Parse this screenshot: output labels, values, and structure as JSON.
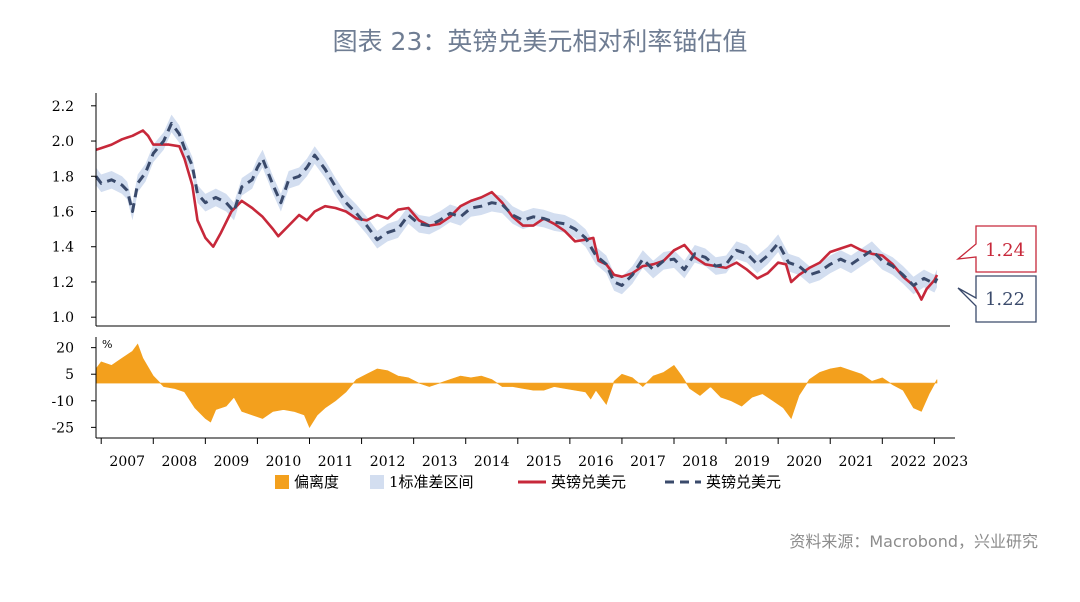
{
  "title": "图表 23：英镑兑美元相对利率锚估值",
  "source": "资料来源：Macrobond，兴业研究",
  "colors": {
    "actual": "#c7283a",
    "model": "#3a4a6b",
    "band": "#d3def0",
    "deviation": "#f3a01d"
  },
  "chart_data": {
    "type": "line",
    "upper_panel": {
      "ylim": [
        0.95,
        2.25
      ],
      "yticks": [
        "1.0",
        "1.2",
        "1.4",
        "1.6",
        "1.8",
        "2.0",
        "2.2"
      ],
      "series": [
        {
          "name": "英镑兑美元",
          "style": "solid",
          "points": [
            [
              2006.9,
              1.95
            ],
            [
              2007.0,
              1.96
            ],
            [
              2007.2,
              1.98
            ],
            [
              2007.4,
              2.01
            ],
            [
              2007.6,
              2.03
            ],
            [
              2007.8,
              2.06
            ],
            [
              2007.9,
              2.03
            ],
            [
              2008.0,
              1.98
            ],
            [
              2008.3,
              1.98
            ],
            [
              2008.5,
              1.97
            ],
            [
              2008.6,
              1.9
            ],
            [
              2008.75,
              1.75
            ],
            [
              2008.85,
              1.55
            ],
            [
              2009.0,
              1.45
            ],
            [
              2009.15,
              1.4
            ],
            [
              2009.3,
              1.48
            ],
            [
              2009.5,
              1.6
            ],
            [
              2009.7,
              1.66
            ],
            [
              2009.9,
              1.62
            ],
            [
              2010.1,
              1.57
            ],
            [
              2010.3,
              1.5
            ],
            [
              2010.4,
              1.46
            ],
            [
              2010.6,
              1.52
            ],
            [
              2010.8,
              1.58
            ],
            [
              2010.95,
              1.55
            ],
            [
              2011.1,
              1.6
            ],
            [
              2011.3,
              1.63
            ],
            [
              2011.5,
              1.62
            ],
            [
              2011.7,
              1.6
            ],
            [
              2011.9,
              1.56
            ],
            [
              2012.1,
              1.55
            ],
            [
              2012.3,
              1.58
            ],
            [
              2012.5,
              1.56
            ],
            [
              2012.7,
              1.61
            ],
            [
              2012.9,
              1.62
            ],
            [
              2013.1,
              1.55
            ],
            [
              2013.3,
              1.52
            ],
            [
              2013.5,
              1.53
            ],
            [
              2013.7,
              1.57
            ],
            [
              2013.9,
              1.63
            ],
            [
              2014.1,
              1.66
            ],
            [
              2014.3,
              1.68
            ],
            [
              2014.5,
              1.71
            ],
            [
              2014.7,
              1.65
            ],
            [
              2014.9,
              1.57
            ],
            [
              2015.1,
              1.52
            ],
            [
              2015.3,
              1.52
            ],
            [
              2015.5,
              1.56
            ],
            [
              2015.7,
              1.53
            ],
            [
              2015.9,
              1.49
            ],
            [
              2016.1,
              1.43
            ],
            [
              2016.3,
              1.44
            ],
            [
              2016.45,
              1.45
            ],
            [
              2016.55,
              1.32
            ],
            [
              2016.7,
              1.3
            ],
            [
              2016.85,
              1.24
            ],
            [
              2017.0,
              1.23
            ],
            [
              2017.2,
              1.25
            ],
            [
              2017.4,
              1.29
            ],
            [
              2017.6,
              1.3
            ],
            [
              2017.8,
              1.32
            ],
            [
              2018.0,
              1.38
            ],
            [
              2018.2,
              1.41
            ],
            [
              2018.4,
              1.34
            ],
            [
              2018.6,
              1.3
            ],
            [
              2018.8,
              1.29
            ],
            [
              2019.0,
              1.28
            ],
            [
              2019.2,
              1.31
            ],
            [
              2019.4,
              1.27
            ],
            [
              2019.6,
              1.22
            ],
            [
              2019.8,
              1.25
            ],
            [
              2020.0,
              1.31
            ],
            [
              2020.15,
              1.3
            ],
            [
              2020.25,
              1.2
            ],
            [
              2020.4,
              1.24
            ],
            [
              2020.6,
              1.28
            ],
            [
              2020.8,
              1.31
            ],
            [
              2021.0,
              1.37
            ],
            [
              2021.2,
              1.39
            ],
            [
              2021.4,
              1.41
            ],
            [
              2021.6,
              1.38
            ],
            [
              2021.8,
              1.36
            ],
            [
              2022.0,
              1.35
            ],
            [
              2022.2,
              1.3
            ],
            [
              2022.4,
              1.23
            ],
            [
              2022.6,
              1.18
            ],
            [
              2022.7,
              1.13
            ],
            [
              2022.75,
              1.1
            ],
            [
              2022.85,
              1.16
            ],
            [
              2023.0,
              1.21
            ],
            [
              2023.05,
              1.24
            ]
          ]
        },
        {
          "name": "英镑兑美元",
          "style": "dashed",
          "points": [
            [
              2006.9,
              1.8
            ],
            [
              2007.0,
              1.76
            ],
            [
              2007.2,
              1.78
            ],
            [
              2007.4,
              1.75
            ],
            [
              2007.5,
              1.72
            ],
            [
              2007.6,
              1.6
            ],
            [
              2007.7,
              1.76
            ],
            [
              2007.85,
              1.82
            ],
            [
              2008.0,
              1.93
            ],
            [
              2008.2,
              2.0
            ],
            [
              2008.35,
              2.1
            ],
            [
              2008.5,
              2.04
            ],
            [
              2008.6,
              1.96
            ],
            [
              2008.75,
              1.86
            ],
            [
              2008.85,
              1.7
            ],
            [
              2009.0,
              1.65
            ],
            [
              2009.2,
              1.68
            ],
            [
              2009.4,
              1.65
            ],
            [
              2009.55,
              1.6
            ],
            [
              2009.7,
              1.74
            ],
            [
              2009.9,
              1.78
            ],
            [
              2010.0,
              1.85
            ],
            [
              2010.1,
              1.9
            ],
            [
              2010.3,
              1.75
            ],
            [
              2010.45,
              1.65
            ],
            [
              2010.6,
              1.78
            ],
            [
              2010.8,
              1.8
            ],
            [
              2010.95,
              1.85
            ],
            [
              2011.1,
              1.92
            ],
            [
              2011.3,
              1.84
            ],
            [
              2011.5,
              1.74
            ],
            [
              2011.7,
              1.65
            ],
            [
              2011.9,
              1.59
            ],
            [
              2012.1,
              1.52
            ],
            [
              2012.3,
              1.44
            ],
            [
              2012.5,
              1.48
            ],
            [
              2012.7,
              1.5
            ],
            [
              2012.9,
              1.58
            ],
            [
              2013.1,
              1.53
            ],
            [
              2013.3,
              1.52
            ],
            [
              2013.5,
              1.55
            ],
            [
              2013.7,
              1.59
            ],
            [
              2013.9,
              1.57
            ],
            [
              2014.1,
              1.62
            ],
            [
              2014.3,
              1.63
            ],
            [
              2014.5,
              1.65
            ],
            [
              2014.7,
              1.64
            ],
            [
              2014.9,
              1.58
            ],
            [
              2015.1,
              1.55
            ],
            [
              2015.3,
              1.57
            ],
            [
              2015.5,
              1.56
            ],
            [
              2015.7,
              1.54
            ],
            [
              2015.9,
              1.53
            ],
            [
              2016.1,
              1.5
            ],
            [
              2016.3,
              1.45
            ],
            [
              2016.5,
              1.35
            ],
            [
              2016.7,
              1.3
            ],
            [
              2016.85,
              1.2
            ],
            [
              2017.0,
              1.18
            ],
            [
              2017.2,
              1.24
            ],
            [
              2017.4,
              1.33
            ],
            [
              2017.6,
              1.27
            ],
            [
              2017.8,
              1.32
            ],
            [
              2018.0,
              1.33
            ],
            [
              2018.2,
              1.27
            ],
            [
              2018.4,
              1.36
            ],
            [
              2018.6,
              1.34
            ],
            [
              2018.8,
              1.29
            ],
            [
              2019.0,
              1.3
            ],
            [
              2019.2,
              1.38
            ],
            [
              2019.4,
              1.36
            ],
            [
              2019.6,
              1.3
            ],
            [
              2019.8,
              1.35
            ],
            [
              2020.0,
              1.42
            ],
            [
              2020.2,
              1.31
            ],
            [
              2020.4,
              1.29
            ],
            [
              2020.6,
              1.24
            ],
            [
              2020.8,
              1.26
            ],
            [
              2021.0,
              1.3
            ],
            [
              2021.2,
              1.33
            ],
            [
              2021.4,
              1.3
            ],
            [
              2021.6,
              1.34
            ],
            [
              2021.8,
              1.38
            ],
            [
              2022.0,
              1.32
            ],
            [
              2022.2,
              1.29
            ],
            [
              2022.4,
              1.24
            ],
            [
              2022.6,
              1.18
            ],
            [
              2022.8,
              1.22
            ],
            [
              2023.0,
              1.19
            ],
            [
              2023.05,
              1.22
            ]
          ]
        }
      ],
      "band_halfwidth": 0.05,
      "annotations": [
        {
          "text": "1.24",
          "value": 1.24,
          "series": "英镑兑美元"
        },
        {
          "text": "1.22",
          "value": 1.22,
          "series": "英镑兑美元"
        }
      ]
    },
    "lower_panel": {
      "ylim": [
        -31,
        26
      ],
      "yticks": [
        "20",
        "5",
        "-10",
        "-25"
      ],
      "ytick_values": [
        20,
        5,
        -10,
        -25
      ],
      "unit": "%",
      "series_name": "偏离度",
      "points": [
        [
          2006.9,
          8
        ],
        [
          2007.0,
          12
        ],
        [
          2007.2,
          10
        ],
        [
          2007.4,
          14
        ],
        [
          2007.6,
          18
        ],
        [
          2007.7,
          22
        ],
        [
          2007.8,
          14
        ],
        [
          2008.0,
          4
        ],
        [
          2008.2,
          -2
        ],
        [
          2008.4,
          -3
        ],
        [
          2008.6,
          -5
        ],
        [
          2008.8,
          -14
        ],
        [
          2009.0,
          -20
        ],
        [
          2009.1,
          -22
        ],
        [
          2009.2,
          -15
        ],
        [
          2009.4,
          -13
        ],
        [
          2009.55,
          -8
        ],
        [
          2009.7,
          -16
        ],
        [
          2009.9,
          -18
        ],
        [
          2010.1,
          -20
        ],
        [
          2010.3,
          -16
        ],
        [
          2010.5,
          -15
        ],
        [
          2010.7,
          -16
        ],
        [
          2010.9,
          -18
        ],
        [
          2011.0,
          -25
        ],
        [
          2011.15,
          -18
        ],
        [
          2011.3,
          -14
        ],
        [
          2011.5,
          -10
        ],
        [
          2011.7,
          -5
        ],
        [
          2011.9,
          2
        ],
        [
          2012.1,
          5
        ],
        [
          2012.3,
          8
        ],
        [
          2012.5,
          7
        ],
        [
          2012.7,
          4
        ],
        [
          2012.9,
          3
        ],
        [
          2013.1,
          0
        ],
        [
          2013.3,
          -2
        ],
        [
          2013.5,
          0
        ],
        [
          2013.7,
          2
        ],
        [
          2013.9,
          4
        ],
        [
          2014.1,
          3
        ],
        [
          2014.3,
          4
        ],
        [
          2014.5,
          2
        ],
        [
          2014.7,
          -2
        ],
        [
          2014.9,
          -2
        ],
        [
          2015.1,
          -3
        ],
        [
          2015.3,
          -4
        ],
        [
          2015.5,
          -4
        ],
        [
          2015.7,
          -2
        ],
        [
          2015.9,
          -3
        ],
        [
          2016.1,
          -4
        ],
        [
          2016.3,
          -5
        ],
        [
          2016.4,
          -9
        ],
        [
          2016.5,
          -4
        ],
        [
          2016.7,
          -12
        ],
        [
          2016.85,
          1
        ],
        [
          2017.0,
          5
        ],
        [
          2017.2,
          3
        ],
        [
          2017.4,
          -2
        ],
        [
          2017.6,
          4
        ],
        [
          2017.8,
          6
        ],
        [
          2018.0,
          10
        ],
        [
          2018.15,
          4
        ],
        [
          2018.3,
          -3
        ],
        [
          2018.5,
          -7
        ],
        [
          2018.7,
          -2
        ],
        [
          2018.9,
          -8
        ],
        [
          2019.1,
          -10
        ],
        [
          2019.3,
          -13
        ],
        [
          2019.5,
          -8
        ],
        [
          2019.7,
          -6
        ],
        [
          2019.9,
          -10
        ],
        [
          2020.1,
          -14
        ],
        [
          2020.25,
          -20
        ],
        [
          2020.4,
          -7
        ],
        [
          2020.6,
          2
        ],
        [
          2020.8,
          6
        ],
        [
          2021.0,
          8
        ],
        [
          2021.2,
          9
        ],
        [
          2021.4,
          7
        ],
        [
          2021.6,
          5
        ],
        [
          2021.8,
          1
        ],
        [
          2022.0,
          3
        ],
        [
          2022.2,
          -1
        ],
        [
          2022.4,
          -4
        ],
        [
          2022.6,
          -14
        ],
        [
          2022.75,
          -16
        ],
        [
          2022.9,
          -6
        ],
        [
          2023.05,
          2
        ]
      ]
    },
    "x_axis": {
      "xlim": [
        2006.9,
        2023.3
      ],
      "ticks": [
        "2007",
        "2008",
        "2009",
        "2010",
        "2011",
        "2012",
        "2013",
        "2014",
        "2015",
        "2016",
        "2017",
        "2018",
        "2019",
        "2020",
        "2021",
        "2022",
        "2023"
      ]
    },
    "legend": {
      "placement": "bottom",
      "items": [
        "偏离度",
        "1标准差区间",
        "英镑兑美元",
        "英镑兑美元"
      ]
    }
  }
}
